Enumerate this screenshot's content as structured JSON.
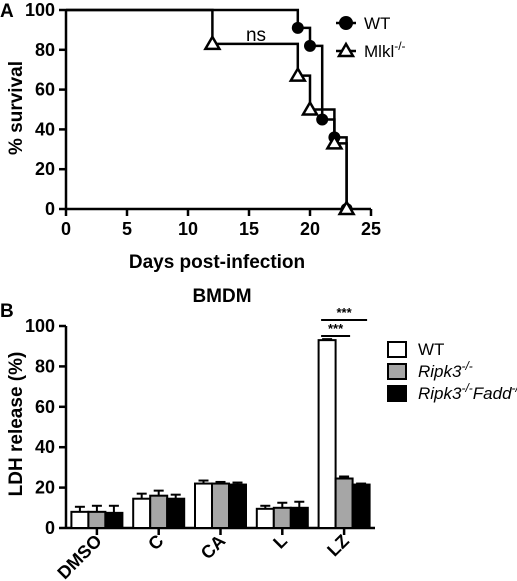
{
  "chart_data": [
    {
      "panel": "A",
      "type": "line",
      "subtype": "kaplan-meier",
      "title": "",
      "xlabel": "Days post-infection",
      "ylabel": "% survival",
      "xlim": [
        0,
        25
      ],
      "ylim": [
        0,
        100
      ],
      "xticks": [
        0,
        5,
        10,
        15,
        20,
        25
      ],
      "yticks": [
        0,
        20,
        40,
        60,
        80,
        100
      ],
      "legend_position": "top-right",
      "annotation": "ns",
      "series": [
        {
          "name": "WT",
          "marker": "circle",
          "steps": [
            [
              0,
              100
            ],
            [
              19,
              91
            ],
            [
              20,
              82
            ],
            [
              21,
              45
            ],
            [
              22,
              36
            ],
            [
              23,
              0
            ]
          ]
        },
        {
          "name": "Mlkl-/-",
          "marker": "triangle",
          "steps": [
            [
              0,
              100
            ],
            [
              12,
              83
            ],
            [
              19,
              67
            ],
            [
              20,
              50
            ],
            [
              22,
              33
            ],
            [
              23,
              0
            ]
          ]
        }
      ]
    },
    {
      "panel": "B",
      "type": "bar",
      "title": "BMDM",
      "xlabel": "",
      "ylabel": "LDH release (%)",
      "ylim": [
        0,
        100
      ],
      "yticks": [
        0,
        20,
        40,
        60,
        80,
        100
      ],
      "legend_position": "top-right",
      "categories": [
        "DMSO",
        "C",
        "CA",
        "L",
        "LZ"
      ],
      "series": [
        {
          "name": "WT",
          "color": "#ffffff",
          "values": [
            8,
            14.5,
            22,
            9.5,
            93
          ],
          "errors": [
            2.5,
            2.5,
            1.5,
            1.5,
            0.5
          ]
        },
        {
          "name": "Ripk3-/-",
          "color": "#a6a6a6",
          "values": [
            8,
            16,
            22,
            10,
            24.5
          ],
          "errors": [
            3,
            2.5,
            0.8,
            2.5,
            1
          ]
        },
        {
          "name": "Ripk3-/-Fadd-/-",
          "color": "#000000",
          "values": [
            7.5,
            14.5,
            21.5,
            10,
            21.5
          ],
          "errors": [
            3.5,
            2,
            1,
            3,
            0.5
          ]
        }
      ],
      "significance": [
        {
          "category": "LZ",
          "from": "WT",
          "to": "Ripk3-/-",
          "label": "***"
        },
        {
          "category": "LZ",
          "from": "WT",
          "to": "Ripk3-/-Fadd-/-",
          "label": "***"
        }
      ]
    }
  ]
}
